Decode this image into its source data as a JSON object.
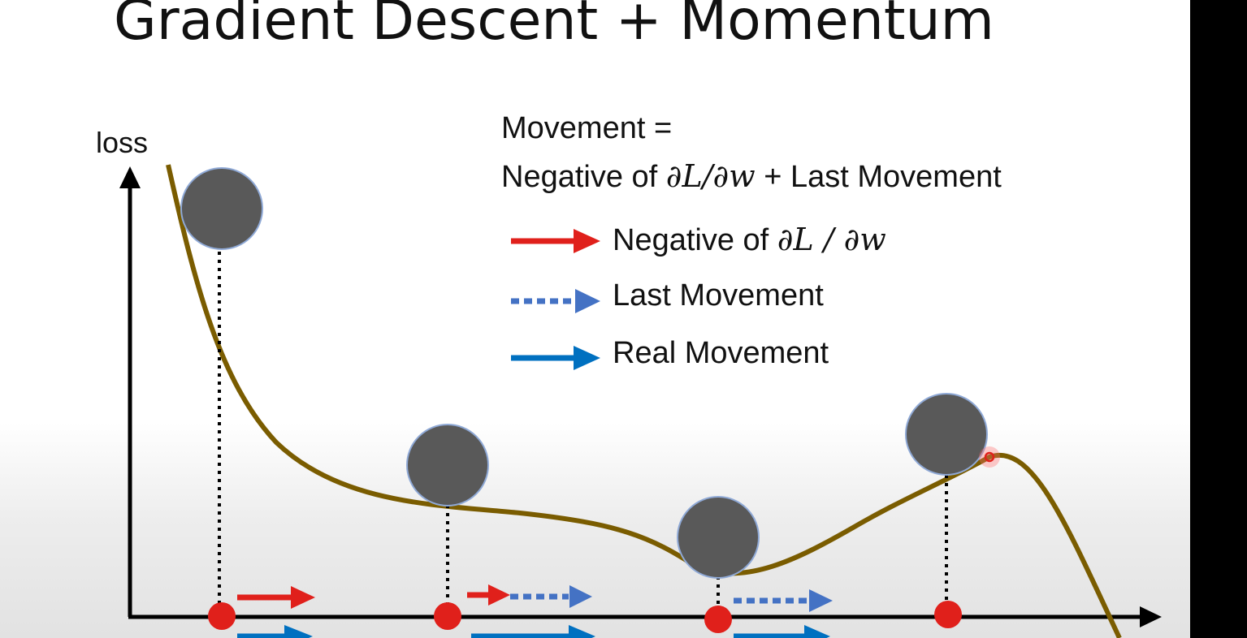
{
  "title": "Gradient Descent + Momentum",
  "axis": {
    "ylabel": "loss"
  },
  "formula": {
    "line1": "Movement =",
    "line2_prefix": "Negative of ",
    "line2_math": "∂L/∂w",
    "line2_suffix": " + Last Movement"
  },
  "legend": [
    {
      "prefix": "Negative of ",
      "math": "∂L / ∂w",
      "color": "#e0201b",
      "style": "solid"
    },
    {
      "prefix": "Last Movement",
      "math": "",
      "color": "#4472c4",
      "style": "dotted"
    },
    {
      "prefix": "Real Movement",
      "math": "",
      "color": "#0070c0",
      "style": "solid"
    }
  ],
  "colors": {
    "curve": "#7a5c00",
    "ball": "#595959",
    "ball_outline": "#8fa9d6",
    "point": "#e0201b",
    "negative_gradient": "#e0201b",
    "last_movement": "#4472c4",
    "real_movement": "#0070c0"
  }
}
